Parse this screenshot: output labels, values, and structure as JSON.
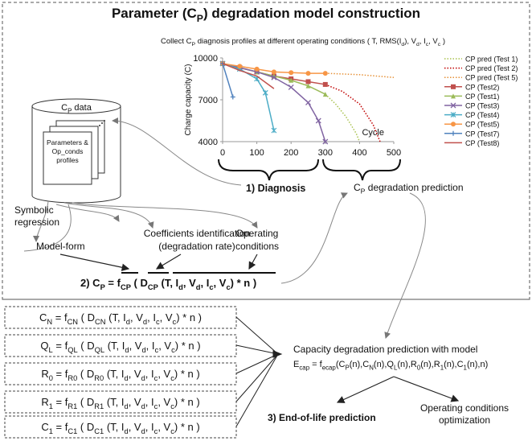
{
  "title": [
    "Parameter (C",
    "P",
    ") degradation model construction"
  ],
  "chart_data": {
    "type": "line",
    "title": [
      "Collect C",
      "P",
      " diagnosis profiles at different operating conditions ( T, RMS(I",
      "d",
      "), V",
      "d",
      ", I",
      "c",
      ", V",
      "c",
      " )"
    ],
    "ylabel": "Charge capacity (C)",
    "xlabel": "Cycle",
    "xlim": [
      0,
      500
    ],
    "ylim": [
      4000,
      10000
    ],
    "xticks": [
      0,
      100,
      200,
      300,
      400,
      500
    ],
    "yticks": [
      4000,
      7000,
      10000
    ],
    "series": [
      {
        "name": "CP pred (Test 1)",
        "color": "#a9c24f",
        "dash": "dotted",
        "marker": "none",
        "x": [
          300,
          330,
          360,
          390,
          400
        ],
        "values": [
          7400,
          6700,
          5800,
          4600,
          4000
        ]
      },
      {
        "name": "CP pred (Test 2)",
        "color": "#c00000",
        "dash": "dotted",
        "marker": "none",
        "x": [
          300,
          350,
          400,
          440,
          460
        ],
        "values": [
          8100,
          7600,
          6700,
          5200,
          4000
        ]
      },
      {
        "name": "CP pred (Test 5)",
        "color": "#e69138",
        "dash": "dotted",
        "marker": "none",
        "x": [
          300,
          350,
          400,
          450,
          500
        ],
        "values": [
          8900,
          8850,
          8800,
          8700,
          8600
        ]
      },
      {
        "name": "CP (Test2)",
        "color": "#c0504d",
        "dash": "solid",
        "marker": "square",
        "x": [
          0,
          50,
          100,
          150,
          200,
          250,
          300
        ],
        "values": [
          9600,
          9300,
          9000,
          8700,
          8500,
          8300,
          8100
        ]
      },
      {
        "name": "CP (Test1)",
        "color": "#9bbb59",
        "dash": "solid",
        "marker": "triangle",
        "x": [
          0,
          50,
          100,
          150,
          200,
          250,
          300
        ],
        "values": [
          9600,
          9300,
          9000,
          8700,
          8400,
          8000,
          7400
        ]
      },
      {
        "name": "CP (Test3)",
        "color": "#8064a2",
        "dash": "solid",
        "marker": "cross",
        "x": [
          0,
          50,
          100,
          150,
          200,
          250,
          280,
          300
        ],
        "values": [
          9600,
          9300,
          9000,
          8600,
          7900,
          6800,
          5500,
          4000
        ]
      },
      {
        "name": "CP (Test4)",
        "color": "#4bacc6",
        "dash": "solid",
        "marker": "asterisk",
        "x": [
          0,
          50,
          100,
          125,
          150
        ],
        "values": [
          9600,
          9200,
          8500,
          7500,
          4800
        ]
      },
      {
        "name": "CP (Test5)",
        "color": "#f79646",
        "dash": "solid",
        "marker": "circle",
        "x": [
          0,
          50,
          100,
          150,
          200,
          250,
          300
        ],
        "values": [
          9600,
          9400,
          9200,
          9000,
          8950,
          8900,
          8900
        ]
      },
      {
        "name": "CP (Test7)",
        "color": "#4f81bd",
        "dash": "solid",
        "marker": "plus",
        "x": [
          0,
          30
        ],
        "values": [
          9600,
          7200
        ]
      },
      {
        "name": "CP (Test8)",
        "color": "#c0504d",
        "dash": "solid",
        "marker": "none",
        "x": [
          0,
          50,
          100,
          150
        ],
        "values": [
          9600,
          9100,
          8700,
          7800
        ]
      }
    ]
  },
  "cp_data": {
    "label": [
      "C",
      "P",
      " data"
    ],
    "doc": [
      "Parameters &",
      "Op_conds",
      "profiles"
    ]
  },
  "symbolic": [
    "Symbolic",
    "regression"
  ],
  "model_form": "Model-form",
  "coefficients": [
    "Coefficients identification",
    "(degradation rate)"
  ],
  "operating": [
    "Operating",
    "conditions"
  ],
  "formula": [
    "2)  C",
    "P",
    " = f",
    "CP",
    " ( D",
    "CP",
    " (T, I",
    "d",
    ", V",
    "d",
    ", I",
    "c",
    ", V",
    "c",
    ") * n )"
  ],
  "diagnosis": "1) Diagnosis",
  "cp_prediction": [
    "C",
    "P",
    " degradation prediction"
  ],
  "parameter_formulas": [
    [
      "C",
      "N",
      " = f",
      "CN",
      " ( D",
      "CN",
      " (T, I",
      "d",
      ", V",
      "d",
      ", I",
      "c",
      ", V",
      "c",
      ") * n )"
    ],
    [
      "Q",
      "L",
      " = f",
      "QL",
      " ( D",
      "QL",
      " (T, I",
      "d",
      ", V",
      "d",
      ", I",
      "c",
      ", V",
      "c",
      ") * n )"
    ],
    [
      "R",
      "0",
      " = f",
      "R0",
      " ( D",
      "R0",
      " (T, I",
      "d",
      ", V",
      "d",
      ", I",
      "c",
      ", V",
      "c",
      ") * n )"
    ],
    [
      "R",
      "1",
      " = f",
      "R1",
      " ( D",
      "R1",
      " (T, I",
      "d",
      ", V",
      "d",
      ", I",
      "c",
      ", V",
      "c",
      ") * n )"
    ],
    [
      "C",
      "1",
      " = f",
      "C1",
      " ( D",
      "C1",
      " (T, I",
      "d",
      ", V",
      "d",
      ", I",
      "c",
      ", V",
      "c",
      ") * n )"
    ]
  ],
  "capacity": "Capacity degradation prediction with model",
  "ecap": [
    "E",
    "cap",
    " = f",
    "ecap",
    "(C",
    "P",
    "(n),C",
    "N",
    "(n),Q",
    "L",
    "(n),R",
    "0",
    "(n),R",
    "1",
    "(n),C",
    "1",
    "(n),n)"
  ],
  "end_of_life": "3) End-of-life prediction",
  "optimization": [
    "Operating conditions",
    "optimization"
  ]
}
